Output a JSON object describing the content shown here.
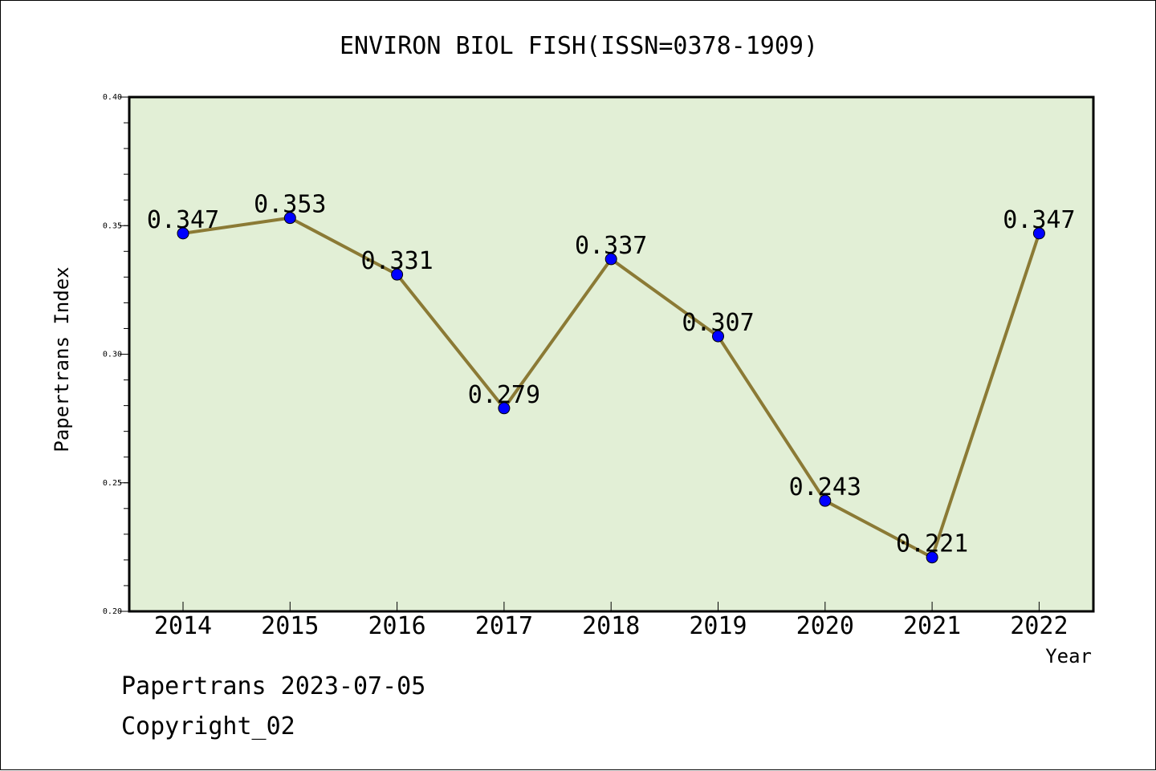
{
  "chart_data": {
    "type": "line",
    "title": "ENVIRON BIOL FISH(ISSN=0378-1909)",
    "xlabel": "Year",
    "ylabel": "Papertrans Index",
    "categories": [
      "2014",
      "2015",
      "2016",
      "2017",
      "2018",
      "2019",
      "2020",
      "2021",
      "2022"
    ],
    "values": [
      0.347,
      0.353,
      0.331,
      0.279,
      0.337,
      0.307,
      0.243,
      0.221,
      0.347
    ],
    "data_labels": [
      "0.347",
      "0.353",
      "0.331",
      "0.279",
      "0.337",
      "0.307",
      "0.243",
      "0.221",
      "0.347"
    ],
    "ylim": [
      0.2,
      0.4
    ],
    "yticks": [
      "0.20",
      "0.25",
      "0.30",
      "0.35",
      "0.40"
    ],
    "grid": false,
    "colors": {
      "plot_bg": "#e2efd6",
      "line": "#8b7a35",
      "marker": "#0000ff"
    }
  },
  "footer": {
    "line1": "Papertrans 2023-07-05",
    "line2": "Copyright_02"
  }
}
